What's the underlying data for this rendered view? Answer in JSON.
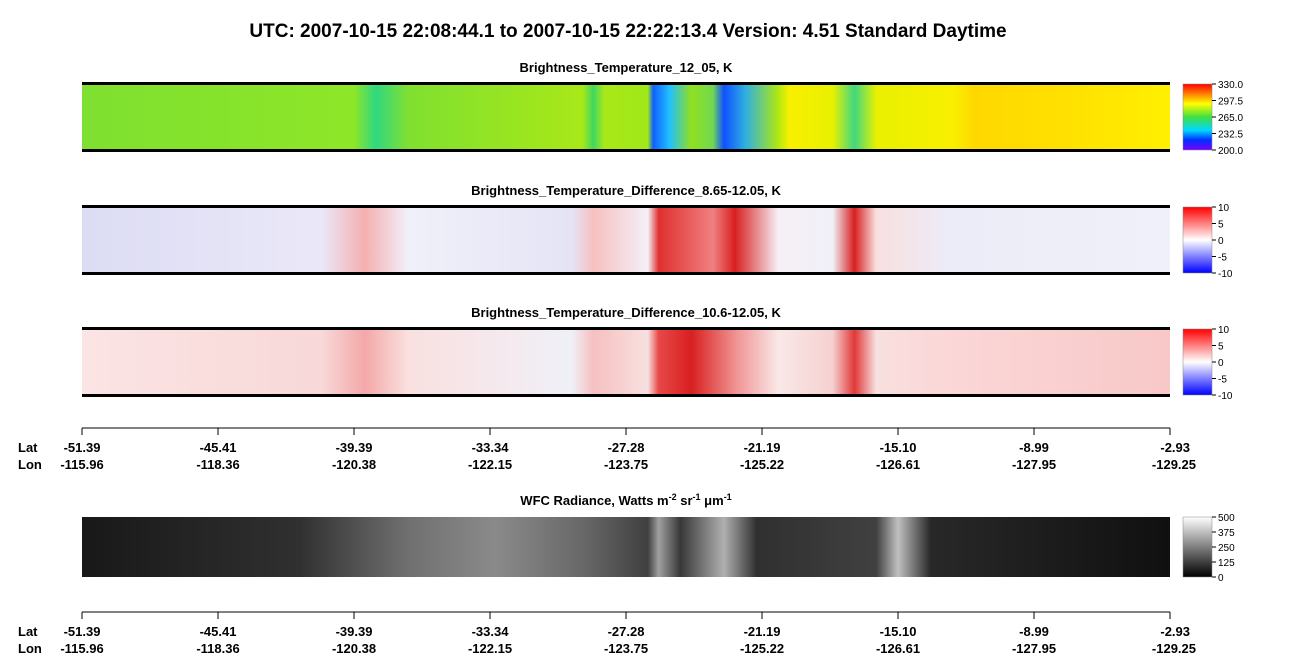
{
  "title": "UTC:  2007-10-15   22:08:44.1  to  2007-10-15   22:22:13.4    Version: 4.51  Standard Daytime",
  "panels": [
    {
      "title_parts": [
        "Brightness_Temperature_12_05, K"
      ],
      "colormap": "rainbow",
      "image": "bt",
      "lim": [
        200,
        330
      ],
      "ticks": [
        {
          "value": 330,
          "label": "330.0"
        },
        {
          "value": 297.5,
          "label": "297.5"
        },
        {
          "value": 265,
          "label": "265.0"
        },
        {
          "value": 232.5,
          "label": "232.5"
        },
        {
          "value": 200,
          "label": "200.0"
        }
      ]
    },
    {
      "title_parts": [
        "Brightness_Temperature_Difference_8.65-12.05, K"
      ],
      "colormap": "bwr",
      "image": "d1",
      "lim": [
        -10,
        10
      ],
      "ticks": [
        10,
        5,
        0,
        -5,
        -10
      ]
    },
    {
      "title_parts": [
        "Brightness_Temperature_Difference_10.6-12.05, K"
      ],
      "colormap": "bwr",
      "image": "d2",
      "lim": [
        -10,
        10
      ],
      "ticks": [
        10,
        5,
        0,
        -5,
        -10
      ]
    },
    {
      "title_parts": [
        "WFC Radiance, Watts m",
        "-2",
        " sr",
        "-1",
        " μm",
        "-1"
      ],
      "colormap": "gray",
      "image": "wfc",
      "lim": [
        0,
        500
      ],
      "ticks": [
        500,
        375,
        250,
        125,
        0
      ]
    }
  ],
  "axis": {
    "lat_label": "Lat",
    "lon_label": "Lon",
    "lat": [
      "-51.39",
      "-45.41",
      "-39.39",
      "-33.34",
      "-27.28",
      "-21.19",
      "-15.10",
      "-8.99",
      "-2.93"
    ],
    "lon": [
      "-115.96",
      "-118.36",
      "-120.38",
      "-122.15",
      "-123.75",
      "-125.22",
      "-126.61",
      "-127.95",
      "-129.25"
    ]
  }
}
